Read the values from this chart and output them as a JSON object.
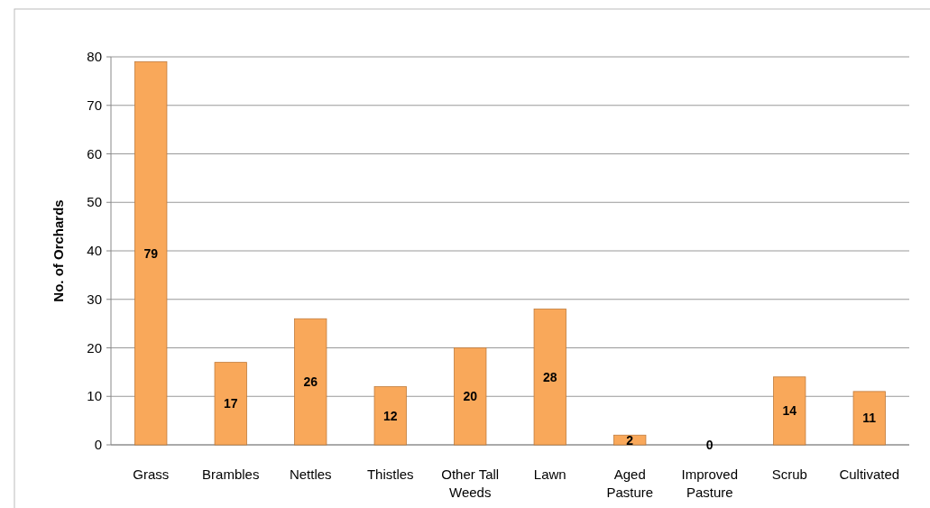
{
  "chart_data": {
    "type": "bar",
    "ylabel": "No. of Orchards",
    "categories": [
      "Grass",
      "Brambles",
      "Nettles",
      "Thistles",
      "Other Tall Weeds",
      "Lawn",
      "Aged Pasture",
      "Improved Pasture",
      "Scrub",
      "Cultivated"
    ],
    "values": [
      79,
      17,
      26,
      12,
      20,
      28,
      2,
      0,
      14,
      11
    ],
    "color": "#f9a85a",
    "ylim": [
      0,
      80
    ],
    "yticks": [
      0,
      10,
      20,
      30,
      40,
      50,
      60,
      70,
      80
    ],
    "grid": "y",
    "data_labels": true
  }
}
